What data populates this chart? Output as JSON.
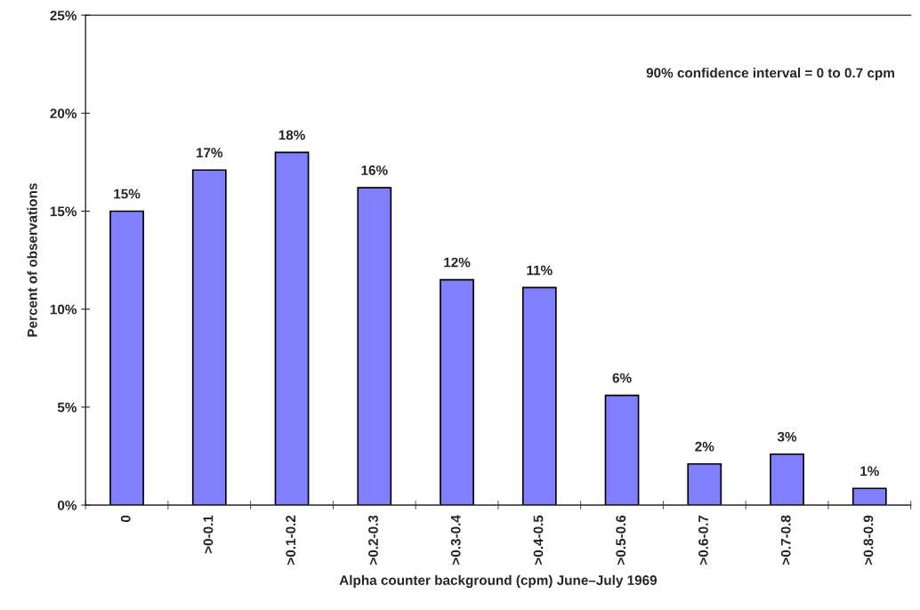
{
  "chart_data": {
    "type": "bar",
    "xlabel": "Alpha counter background (cpm) June–July 1969",
    "ylabel": "Percent of observations",
    "categories": [
      "0",
      ">0-0.1",
      ">0.1-0.2",
      ">0.2-0.3",
      ">0.3-0.4",
      ">0.4-0.5",
      ">0.5-0.6",
      ">0.6-0.7",
      ">0.7-0.8",
      ">0.8-0.9"
    ],
    "values": [
      15.0,
      17.1,
      18.0,
      16.2,
      11.5,
      11.1,
      5.6,
      2.1,
      2.6,
      0.85
    ],
    "value_labels": [
      "15%",
      "17%",
      "18%",
      "16%",
      "12%",
      "11%",
      "6%",
      "2%",
      "3%",
      "1%"
    ],
    "color": "#8080ff",
    "ylim": [
      0,
      25
    ],
    "yticks": [
      {
        "value": 0,
        "label": "0%"
      },
      {
        "value": 5,
        "label": "5%"
      },
      {
        "value": 10,
        "label": "10%"
      },
      {
        "value": 15,
        "label": "15%"
      },
      {
        "value": 20,
        "label": "20%"
      },
      {
        "value": 25,
        "label": "25%"
      }
    ],
    "annotations": [
      "90% confidence interval = 0 to 0.7 cpm"
    ],
    "grid": false,
    "legend": false
  }
}
